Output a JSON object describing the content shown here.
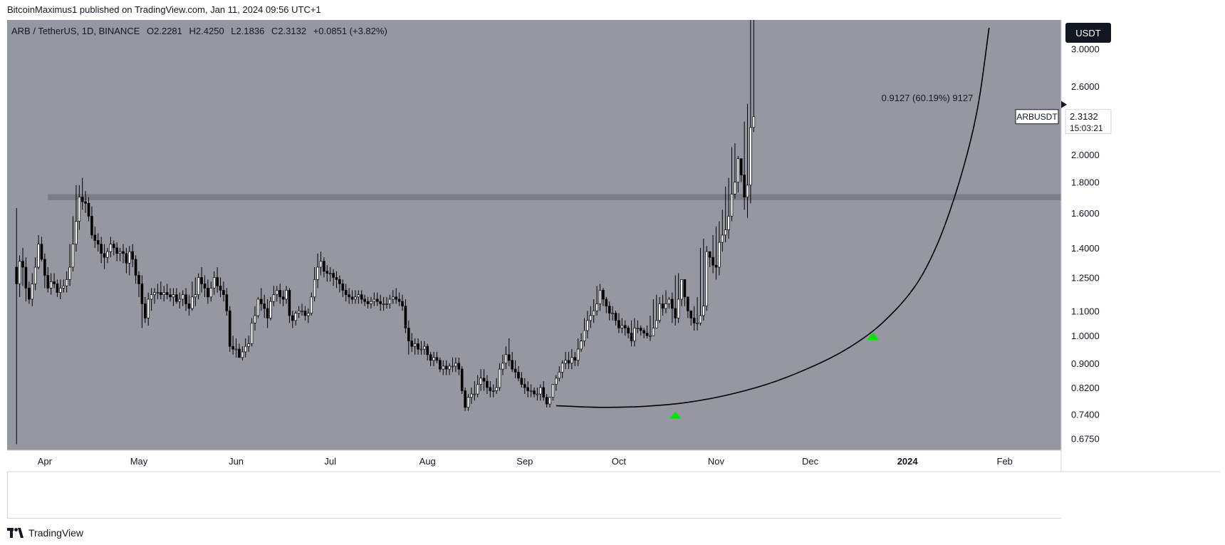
{
  "header": {
    "published_text": "BitcoinMaximus1 published on TradingView.com, Jan 11, 2024 09:56 UTC+1"
  },
  "footer": {
    "brand": "TradingView"
  },
  "colors": {
    "plot_bg": "#9598a1",
    "axis_bg": "#ffffff",
    "up_candle": "#ffffff",
    "down_candle": "#000000",
    "wick": "#000000",
    "resistance": "#787b86",
    "curve": "#000000",
    "marker": "#00e600"
  },
  "chart_data": {
    "type": "candlestick",
    "symbol_line": {
      "symbol": "ARB / TetherUS, 1D, BINANCE",
      "o_label": "O",
      "o_value": "2.2281",
      "h_label": "H",
      "h_value": "2.4250",
      "l_label": "L",
      "l_value": "2.1836",
      "c_label": "C",
      "c_value": "2.3132",
      "change": "+0.0851 (+3.82%)"
    },
    "currency_button": "USDT",
    "last_price_label": "ARBUSDT",
    "last_price": "2.3132",
    "countdown": "15:03:21",
    "annotation": "0.9127 (60.19%) 9127",
    "y_scale": "log",
    "ylim": [
      0.645,
      3.35
    ],
    "y_ticks": [
      {
        "value": 3.0,
        "label": "3.0000"
      },
      {
        "value": 2.6,
        "label": "2.6000"
      },
      {
        "value": 2.0,
        "label": "2.0000"
      },
      {
        "value": 1.8,
        "label": "1.8000"
      },
      {
        "value": 1.6,
        "label": "1.6000"
      },
      {
        "value": 1.4,
        "label": "1.4000"
      },
      {
        "value": 1.25,
        "label": "1.2500"
      },
      {
        "value": 1.1,
        "label": "1.1000"
      },
      {
        "value": 1.0,
        "label": "1.0000"
      },
      {
        "value": 0.9,
        "label": "0.9000"
      },
      {
        "value": 0.82,
        "label": "0.8200"
      },
      {
        "value": 0.74,
        "label": "0.7400"
      },
      {
        "value": 0.675,
        "label": "0.6750"
      }
    ],
    "x_ticks": [
      {
        "date": "2023-04-01",
        "label": "Apr"
      },
      {
        "date": "2023-05-01",
        "label": "May"
      },
      {
        "date": "2023-06-01",
        "label": "Jun"
      },
      {
        "date": "2023-07-01",
        "label": "Jul"
      },
      {
        "date": "2023-08-01",
        "label": "Aug"
      },
      {
        "date": "2023-09-01",
        "label": "Sep"
      },
      {
        "date": "2023-10-01",
        "label": "Oct"
      },
      {
        "date": "2023-11-01",
        "label": "Nov"
      },
      {
        "date": "2023-12-01",
        "label": "Dec"
      },
      {
        "date": "2024-01-01",
        "label": "2024"
      },
      {
        "date": "2024-02-01",
        "label": "Feb"
      }
    ],
    "xlim": [
      "2023-03-20",
      "2024-02-19"
    ],
    "resistance_zone": {
      "from": "2023-04-02",
      "to": "2024-02-19",
      "low": 1.68,
      "high": 1.72
    },
    "parabolic_curve": [
      {
        "date": "2023-09-11",
        "value": 0.765
      },
      {
        "date": "2023-09-25",
        "value": 0.76
      },
      {
        "date": "2023-10-09",
        "value": 0.763
      },
      {
        "date": "2023-10-23",
        "value": 0.775
      },
      {
        "date": "2023-11-06",
        "value": 0.8
      },
      {
        "date": "2023-11-20",
        "value": 0.84
      },
      {
        "date": "2023-12-04",
        "value": 0.9
      },
      {
        "date": "2023-12-14",
        "value": 0.96
      },
      {
        "date": "2023-12-24",
        "value": 1.05
      },
      {
        "date": "2024-01-03",
        "value": 1.2
      },
      {
        "date": "2024-01-10",
        "value": 1.4
      },
      {
        "date": "2024-01-16",
        "value": 1.7
      },
      {
        "date": "2024-01-21",
        "value": 2.1
      },
      {
        "date": "2024-01-24",
        "value": 2.5
      },
      {
        "date": "2024-01-27",
        "value": 3.25
      }
    ],
    "markers": [
      {
        "date": "2023-10-19",
        "value": 0.738
      },
      {
        "date": "2023-12-21",
        "value": 0.998
      }
    ],
    "candles": {
      "start_date": "2023-03-23",
      "o": [
        1.3,
        1.22,
        1.33,
        1.3,
        1.2,
        1.15,
        1.22,
        1.3,
        1.42,
        1.34,
        1.26,
        1.2,
        1.23,
        1.22,
        1.18,
        1.2,
        1.21,
        1.24,
        1.3,
        1.42,
        1.55,
        1.7,
        1.67,
        1.66,
        1.58,
        1.47,
        1.44,
        1.42,
        1.37,
        1.35,
        1.38,
        1.42,
        1.4,
        1.37,
        1.38,
        1.37,
        1.32,
        1.38,
        1.34,
        1.26,
        1.22,
        1.13,
        1.07,
        1.15,
        1.17,
        1.18,
        1.18,
        1.17,
        1.18,
        1.17,
        1.16,
        1.17,
        1.14,
        1.15,
        1.17,
        1.13,
        1.11,
        1.16,
        1.17,
        1.25,
        1.22,
        1.2,
        1.16,
        1.2,
        1.25,
        1.21,
        1.19,
        1.17,
        1.1,
        0.96,
        0.95,
        0.95,
        0.92,
        0.94,
        0.96,
        0.97,
        1.05,
        1.08,
        1.15,
        1.13,
        1.11,
        1.07,
        1.14,
        1.17,
        1.19,
        1.16,
        1.15,
        1.19,
        1.08,
        1.06,
        1.09,
        1.1,
        1.1,
        1.08,
        1.09,
        1.16,
        1.24,
        1.3,
        1.33,
        1.28,
        1.27,
        1.27,
        1.25,
        1.24,
        1.22,
        1.19,
        1.17,
        1.16,
        1.15,
        1.16,
        1.17,
        1.15,
        1.14,
        1.13,
        1.14,
        1.15,
        1.14,
        1.13,
        1.13,
        1.13,
        1.15,
        1.16,
        1.15,
        1.14,
        1.12,
        1.03,
        0.98,
        0.96,
        0.97,
        0.95,
        0.95,
        0.96,
        0.93,
        0.91,
        0.92,
        0.91,
        0.88,
        0.89,
        0.88,
        0.89,
        0.89,
        0.9,
        0.88,
        0.81,
        0.76,
        0.79,
        0.8,
        0.8,
        0.83,
        0.85,
        0.84,
        0.82,
        0.81,
        0.81,
        0.82,
        0.88,
        0.9,
        0.93,
        0.91,
        0.88,
        0.87,
        0.85,
        0.83,
        0.82,
        0.81,
        0.81,
        0.8,
        0.8,
        0.82,
        0.79,
        0.77,
        0.79,
        0.83,
        0.85,
        0.87,
        0.9,
        0.91,
        0.9,
        0.92,
        0.91,
        0.95,
        0.98,
        1.02,
        1.06,
        1.08,
        1.1,
        1.13,
        1.19,
        1.15,
        1.12,
        1.09,
        1.09,
        1.06,
        1.03,
        1.04,
        1.03,
        1.01,
        0.98,
        1.03,
        1.03,
        1.02,
        1.01,
        1.0,
        1.0,
        1.03,
        1.06,
        1.13,
        1.11,
        1.13,
        1.15,
        1.11,
        1.07,
        1.15,
        1.24,
        1.16,
        1.1,
        1.07,
        1.05,
        1.05,
        1.08,
        1.12,
        1.38,
        1.35,
        1.31,
        1.3,
        1.43,
        1.47,
        1.5,
        1.58,
        1.72,
        1.8,
        1.97,
        1.85,
        1.7,
        1.78,
        2.22
      ],
      "h": [
        1.63,
        1.36,
        1.4,
        1.35,
        1.23,
        1.27,
        1.35,
        1.47,
        1.46,
        1.37,
        1.3,
        1.27,
        1.27,
        1.24,
        1.24,
        1.24,
        1.28,
        1.42,
        1.58,
        1.78,
        1.78,
        1.83,
        1.74,
        1.7,
        1.64,
        1.52,
        1.48,
        1.46,
        1.42,
        1.4,
        1.46,
        1.44,
        1.43,
        1.4,
        1.42,
        1.4,
        1.41,
        1.42,
        1.36,
        1.28,
        1.26,
        1.16,
        1.18,
        1.2,
        1.2,
        1.22,
        1.23,
        1.21,
        1.22,
        1.2,
        1.2,
        1.2,
        1.18,
        1.19,
        1.2,
        1.17,
        1.23,
        1.25,
        1.27,
        1.3,
        1.26,
        1.24,
        1.23,
        1.28,
        1.3,
        1.25,
        1.23,
        1.2,
        1.12,
        1.0,
        0.99,
        0.97,
        0.96,
        0.99,
        1.0,
        1.07,
        1.12,
        1.16,
        1.2,
        1.17,
        1.15,
        1.16,
        1.21,
        1.21,
        1.22,
        1.19,
        1.21,
        1.2,
        1.1,
        1.1,
        1.12,
        1.13,
        1.12,
        1.11,
        1.18,
        1.3,
        1.37,
        1.38,
        1.35,
        1.31,
        1.3,
        1.29,
        1.28,
        1.26,
        1.24,
        1.22,
        1.2,
        1.19,
        1.19,
        1.19,
        1.19,
        1.17,
        1.16,
        1.16,
        1.18,
        1.18,
        1.17,
        1.16,
        1.16,
        1.17,
        1.19,
        1.2,
        1.18,
        1.17,
        1.15,
        1.06,
        1.01,
        0.99,
        0.99,
        0.98,
        0.98,
        0.97,
        0.94,
        0.94,
        0.94,
        0.92,
        0.91,
        0.91,
        0.9,
        0.92,
        0.92,
        0.92,
        0.89,
        0.82,
        0.8,
        0.82,
        0.84,
        0.86,
        0.88,
        0.88,
        0.86,
        0.84,
        0.83,
        0.85,
        0.9,
        0.93,
        0.96,
        0.99,
        0.94,
        0.91,
        0.89,
        0.87,
        0.85,
        0.84,
        0.83,
        0.82,
        0.82,
        0.83,
        0.84,
        0.8,
        0.79,
        0.83,
        0.86,
        0.89,
        0.91,
        0.94,
        0.94,
        0.95,
        0.94,
        0.99,
        1.01,
        1.07,
        1.1,
        1.12,
        1.15,
        1.21,
        1.22,
        1.2,
        1.16,
        1.14,
        1.12,
        1.1,
        1.09,
        1.07,
        1.06,
        1.04,
        1.06,
        1.07,
        1.06,
        1.04,
        1.03,
        1.04,
        1.08,
        1.15,
        1.17,
        1.16,
        1.17,
        1.19,
        1.16,
        1.18,
        1.26,
        1.27,
        1.23,
        1.17,
        1.12,
        1.1,
        1.12,
        1.16,
        1.4,
        1.45,
        1.41,
        1.37,
        1.47,
        1.52,
        1.55,
        1.62,
        1.77,
        1.83,
        2.06,
        2.09,
        1.99,
        1.86,
        2.27,
        2.43
      ],
      "l": [
        0.66,
        1.16,
        1.21,
        1.14,
        1.13,
        1.12,
        1.19,
        1.29,
        1.33,
        1.2,
        1.18,
        1.17,
        1.2,
        1.16,
        1.15,
        1.18,
        1.18,
        1.21,
        1.28,
        1.38,
        1.5,
        1.62,
        1.6,
        1.55,
        1.45,
        1.4,
        1.38,
        1.32,
        1.29,
        1.32,
        1.35,
        1.36,
        1.33,
        1.33,
        1.32,
        1.27,
        1.26,
        1.3,
        1.22,
        1.16,
        1.03,
        1.05,
        1.04,
        1.1,
        1.13,
        1.15,
        1.15,
        1.14,
        1.15,
        1.14,
        1.12,
        1.13,
        1.11,
        1.12,
        1.1,
        1.08,
        1.1,
        1.12,
        1.15,
        1.18,
        1.16,
        1.13,
        1.14,
        1.17,
        1.18,
        1.16,
        1.14,
        1.08,
        0.94,
        0.93,
        0.92,
        0.92,
        0.91,
        0.92,
        0.94,
        0.96,
        1.02,
        1.07,
        1.1,
        1.07,
        1.03,
        1.06,
        1.12,
        1.14,
        1.13,
        1.12,
        1.13,
        1.05,
        1.03,
        1.04,
        1.07,
        1.08,
        1.06,
        1.05,
        1.08,
        1.14,
        1.2,
        1.26,
        1.25,
        1.23,
        1.23,
        1.21,
        1.2,
        1.18,
        1.16,
        1.14,
        1.13,
        1.13,
        1.13,
        1.13,
        1.13,
        1.12,
        1.11,
        1.11,
        1.12,
        1.12,
        1.1,
        1.1,
        1.11,
        1.11,
        1.13,
        1.13,
        1.12,
        1.1,
        1.01,
        0.93,
        0.94,
        0.93,
        0.93,
        0.93,
        0.93,
        0.91,
        0.89,
        0.89,
        0.9,
        0.87,
        0.86,
        0.86,
        0.86,
        0.87,
        0.87,
        0.86,
        0.8,
        0.75,
        0.75,
        0.77,
        0.78,
        0.79,
        0.81,
        0.81,
        0.8,
        0.79,
        0.79,
        0.8,
        0.81,
        0.86,
        0.88,
        0.89,
        0.87,
        0.85,
        0.84,
        0.82,
        0.8,
        0.79,
        0.79,
        0.79,
        0.78,
        0.78,
        0.78,
        0.76,
        0.76,
        0.78,
        0.81,
        0.84,
        0.85,
        0.88,
        0.88,
        0.88,
        0.89,
        0.89,
        0.94,
        0.96,
        0.99,
        1.03,
        1.05,
        1.08,
        1.1,
        1.12,
        1.09,
        1.06,
        1.06,
        1.04,
        1.01,
        1.01,
        1.0,
        0.99,
        0.96,
        0.96,
        1.01,
        1.0,
        0.99,
        0.99,
        0.98,
        1.0,
        1.04,
        1.05,
        1.08,
        1.09,
        1.11,
        1.05,
        1.04,
        1.05,
        1.12,
        1.12,
        1.07,
        1.04,
        1.02,
        1.02,
        1.04,
        1.06,
        1.1,
        1.3,
        1.27,
        1.24,
        1.26,
        1.38,
        1.43,
        1.45,
        1.55,
        1.69,
        1.73,
        1.8,
        1.62,
        1.57,
        1.66,
        2.18
      ],
      "c": [
        1.22,
        1.33,
        1.3,
        1.2,
        1.15,
        1.22,
        1.3,
        1.42,
        1.34,
        1.26,
        1.2,
        1.23,
        1.22,
        1.18,
        1.2,
        1.21,
        1.24,
        1.3,
        1.42,
        1.55,
        1.7,
        1.67,
        1.66,
        1.58,
        1.47,
        1.44,
        1.42,
        1.37,
        1.35,
        1.38,
        1.42,
        1.4,
        1.37,
        1.38,
        1.37,
        1.32,
        1.38,
        1.34,
        1.26,
        1.22,
        1.13,
        1.07,
        1.15,
        1.17,
        1.18,
        1.18,
        1.17,
        1.18,
        1.17,
        1.16,
        1.17,
        1.14,
        1.15,
        1.17,
        1.13,
        1.11,
        1.16,
        1.17,
        1.25,
        1.22,
        1.2,
        1.16,
        1.2,
        1.25,
        1.21,
        1.19,
        1.17,
        1.1,
        0.96,
        0.95,
        0.95,
        0.92,
        0.94,
        0.96,
        0.97,
        1.05,
        1.08,
        1.15,
        1.13,
        1.11,
        1.07,
        1.14,
        1.17,
        1.19,
        1.16,
        1.15,
        1.19,
        1.08,
        1.06,
        1.09,
        1.1,
        1.1,
        1.08,
        1.09,
        1.16,
        1.24,
        1.3,
        1.33,
        1.28,
        1.27,
        1.27,
        1.25,
        1.24,
        1.22,
        1.19,
        1.17,
        1.16,
        1.15,
        1.16,
        1.17,
        1.15,
        1.14,
        1.13,
        1.14,
        1.15,
        1.14,
        1.13,
        1.13,
        1.13,
        1.15,
        1.16,
        1.15,
        1.14,
        1.12,
        1.03,
        0.98,
        0.96,
        0.97,
        0.95,
        0.95,
        0.96,
        0.93,
        0.91,
        0.92,
        0.91,
        0.88,
        0.89,
        0.88,
        0.89,
        0.89,
        0.9,
        0.88,
        0.81,
        0.76,
        0.79,
        0.8,
        0.8,
        0.83,
        0.85,
        0.84,
        0.82,
        0.81,
        0.81,
        0.82,
        0.88,
        0.9,
        0.93,
        0.91,
        0.88,
        0.87,
        0.85,
        0.83,
        0.82,
        0.81,
        0.81,
        0.8,
        0.8,
        0.82,
        0.79,
        0.77,
        0.79,
        0.83,
        0.85,
        0.87,
        0.9,
        0.91,
        0.9,
        0.92,
        0.91,
        0.95,
        0.98,
        1.02,
        1.06,
        1.08,
        1.1,
        1.13,
        1.19,
        1.15,
        1.12,
        1.09,
        1.09,
        1.06,
        1.03,
        1.04,
        1.03,
        1.01,
        0.98,
        1.03,
        1.03,
        1.02,
        1.01,
        1.0,
        1.0,
        1.03,
        1.06,
        1.13,
        1.11,
        1.13,
        1.15,
        1.11,
        1.07,
        1.15,
        1.24,
        1.16,
        1.1,
        1.07,
        1.05,
        1.05,
        1.08,
        1.12,
        1.38,
        1.35,
        1.31,
        1.3,
        1.43,
        1.47,
        1.5,
        1.58,
        1.72,
        1.8,
        1.97,
        1.85,
        1.7,
        1.78,
        2.22,
        2.3132
      ]
    }
  }
}
